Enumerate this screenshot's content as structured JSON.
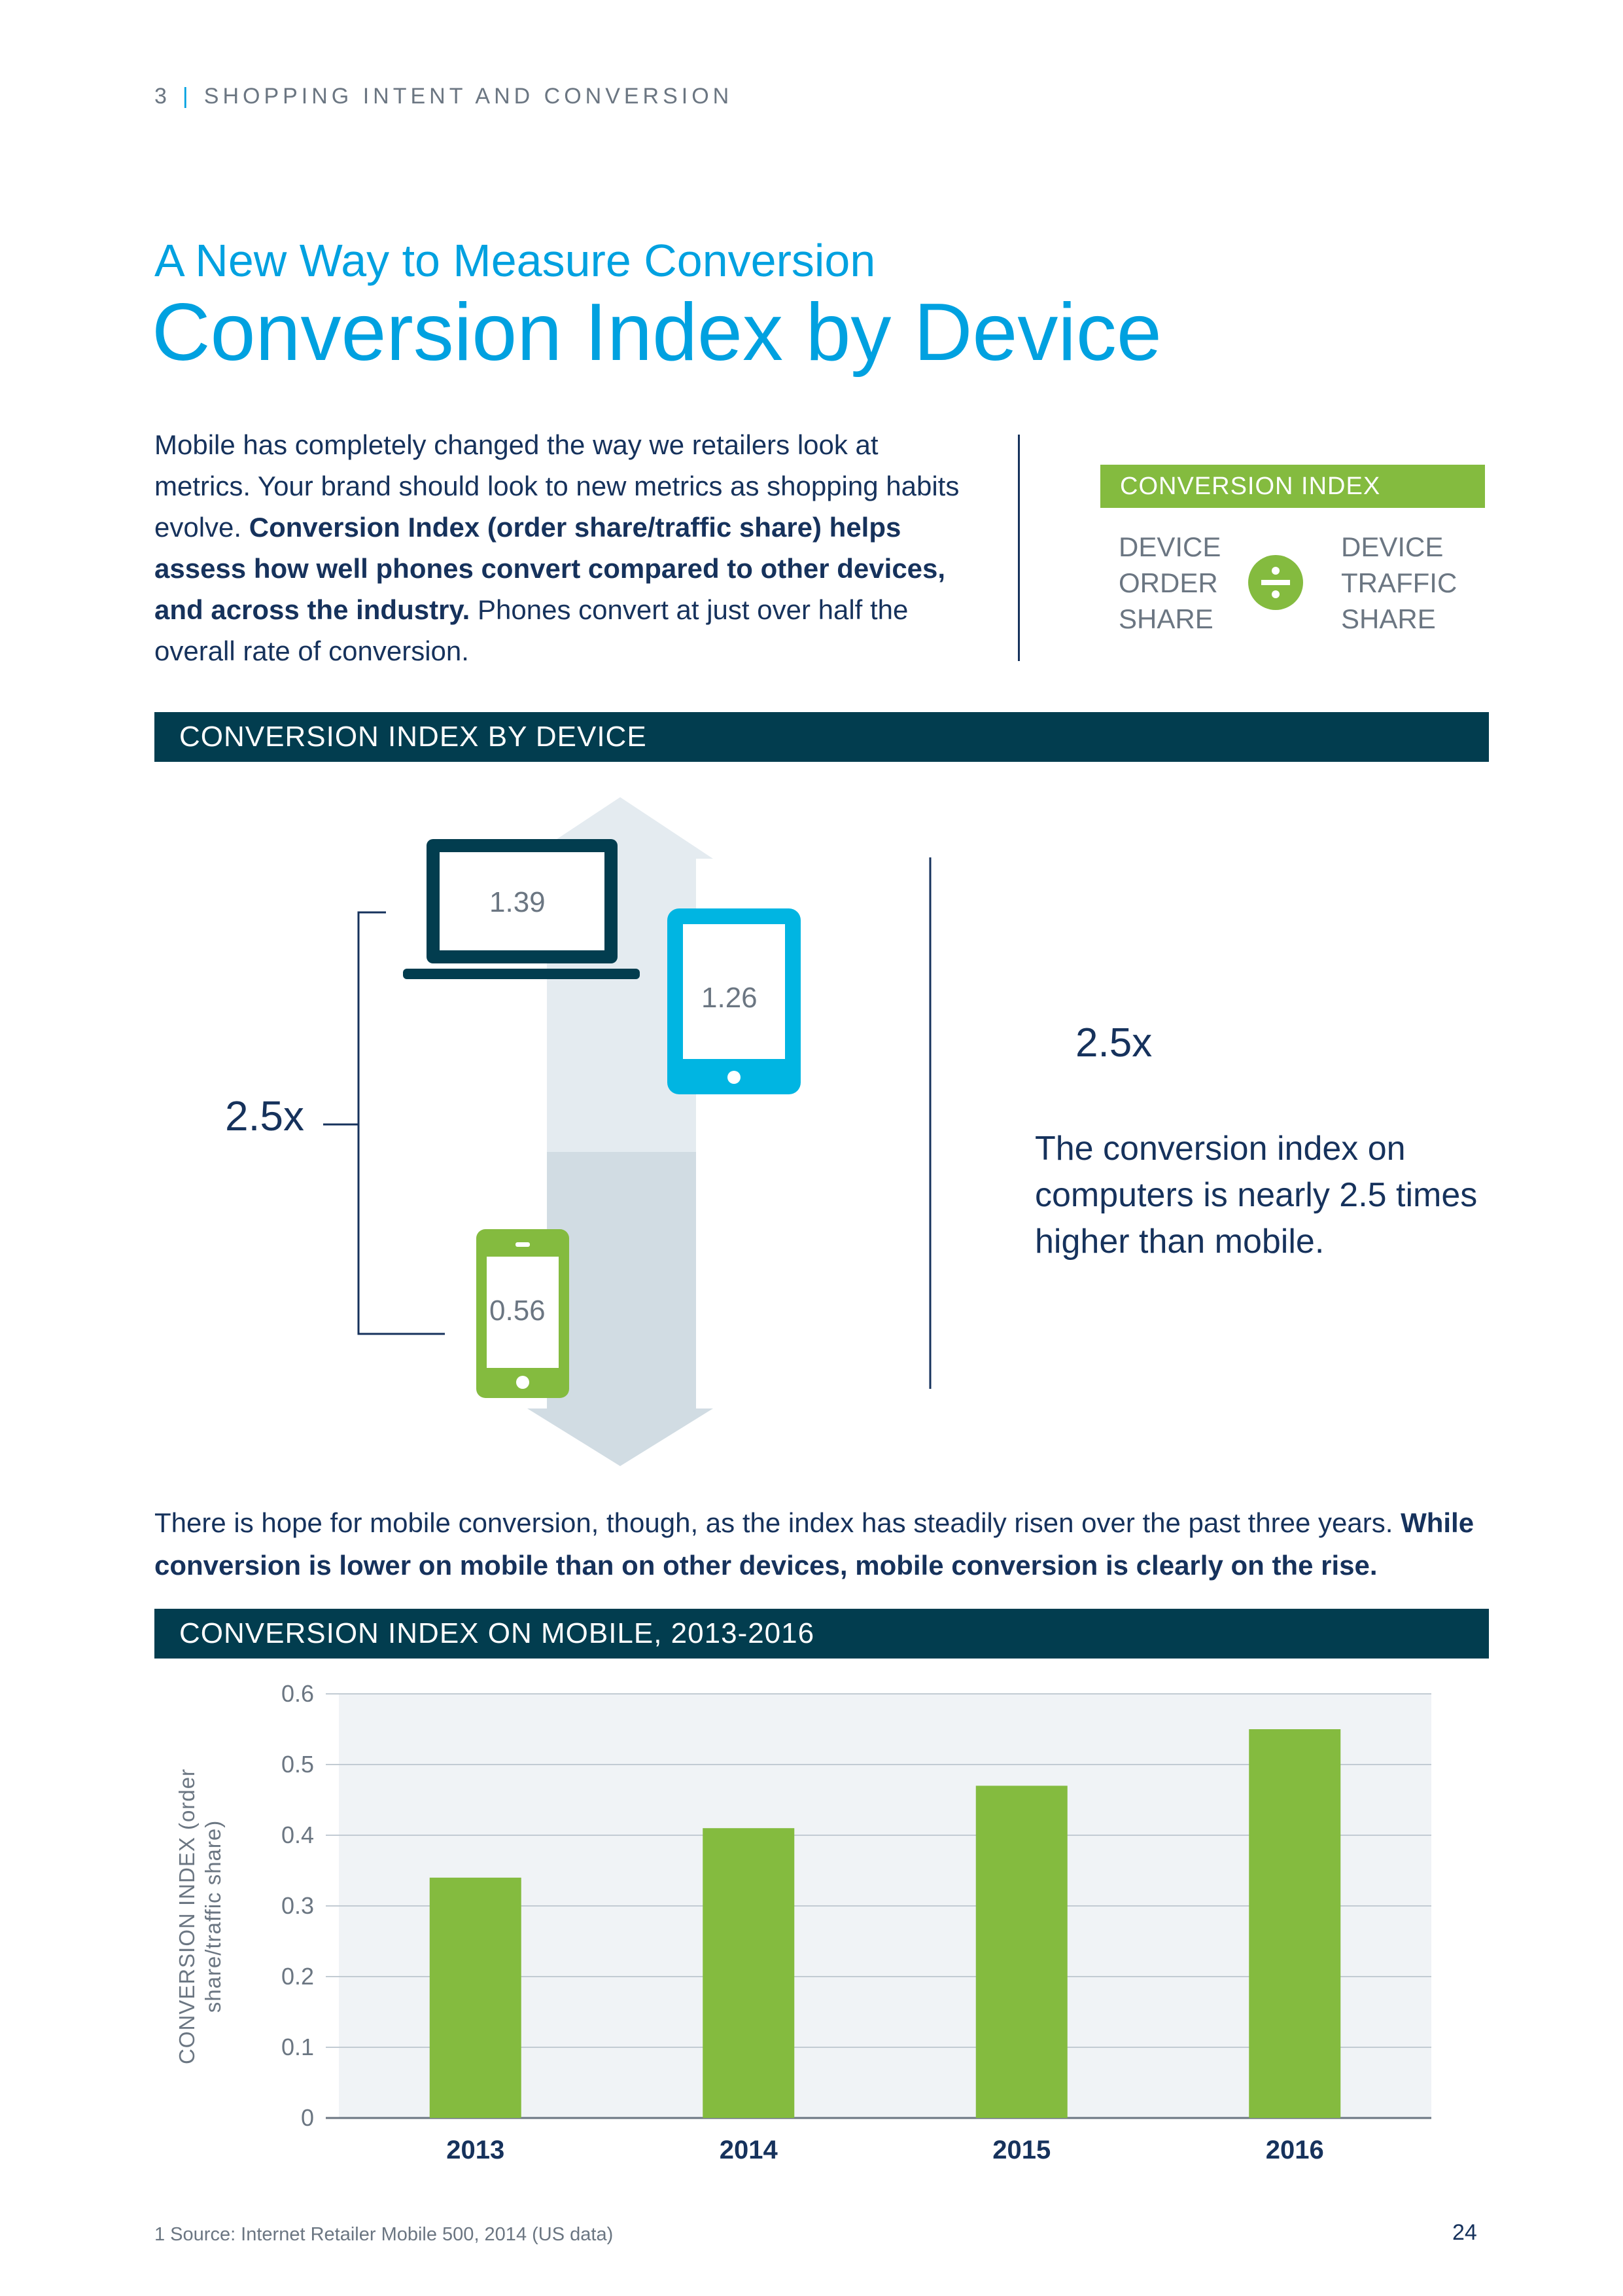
{
  "header": {
    "section_number": "3",
    "separator": "|",
    "section_title": "SHOPPING INTENT AND CONVERSION"
  },
  "kicker": "A New Way to Measure Conversion",
  "title": "Conversion Index by Device",
  "intro": {
    "part1": "Mobile has completely changed the way we retailers look at metrics. Your brand should look to new metrics as shopping habits evolve. ",
    "bold": "Conversion Index (order share/traffic share) helps assess how well phones convert compared to other devices, and across the industry.",
    "part2": " Phones convert at just over half the overall rate of conversion."
  },
  "formula": {
    "heading": "CONVERSION INDEX",
    "left": "DEVICE\nORDER\nSHARE",
    "right": "DEVICE\nTRAFFIC\nSHARE",
    "operator_icon": "divide-icon"
  },
  "device_section": {
    "heading": "CONVERSION INDEX BY DEVICE",
    "bracket_label": "2.5x",
    "devices": [
      {
        "name": "computer",
        "icon": "laptop-icon",
        "value": "1.39"
      },
      {
        "name": "tablet",
        "icon": "tablet-icon",
        "value": "1.26"
      },
      {
        "name": "mobile",
        "icon": "phone-icon",
        "value": "0.56"
      }
    ],
    "callout_badge": "2.5x",
    "callout_text": "The conversion index on computers is nearly 2.5 times higher than mobile.",
    "colors": {
      "laptop": "#023d4f",
      "tablet": "#00b5e2",
      "phone": "#84bb3f",
      "arrow_light": "#e4ebf0",
      "arrow_dark": "#d1dce3"
    }
  },
  "para2": {
    "normal": "There is hope for mobile conversion, though, as the index has steadily risen over the past three years. ",
    "bold": "While conversion is lower on mobile than on other devices, mobile conversion is clearly on the rise."
  },
  "mobile_section": {
    "heading": "CONVERSION INDEX ON MOBILE, 2013-2016"
  },
  "chart_data": {
    "type": "bar",
    "title": "CONVERSION INDEX ON MOBILE, 2013-2016",
    "categories": [
      "2013",
      "2014",
      "2015",
      "2016"
    ],
    "values": [
      0.34,
      0.41,
      0.47,
      0.55
    ],
    "xlabel": "",
    "ylabel": "CONVERSION INDEX (order share/traffic share)",
    "ylim": [
      0,
      0.6
    ],
    "yticks": [
      "0",
      "0.1",
      "0.2",
      "0.3",
      "0.4",
      "0.5",
      "0.6"
    ],
    "grid": true,
    "bar_color": "#84bb3f",
    "plot_bg": "#f0f3f6"
  },
  "footnote": "1  Source: Internet Retailer Mobile 500, 2014 (US data)",
  "page_number": "24"
}
